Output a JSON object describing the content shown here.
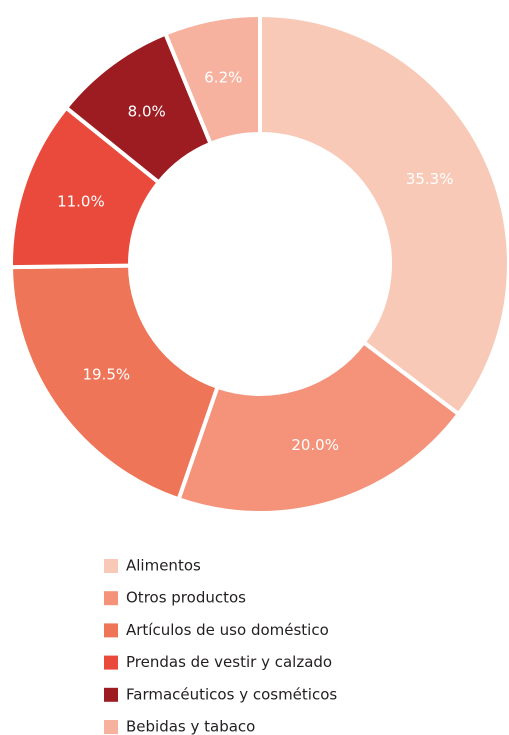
{
  "chart_data": {
    "type": "pie",
    "categories": [
      "Alimentos",
      "Otros productos",
      "Artículos de uso doméstico",
      "Prendas de vestir y calzado",
      "Farmacéuticos y cosméticos",
      "Bebidas y tabaco"
    ],
    "values": [
      35.3,
      20.0,
      19.5,
      11.0,
      8.0,
      6.2
    ],
    "value_labels": [
      "35.3%",
      "20.0%",
      "19.5%",
      "11.0%",
      "8.0%",
      "6.2%"
    ],
    "colors": [
      "#f9c9b8",
      "#f4937a",
      "#ef7558",
      "#ea4a3c",
      "#9c1c21",
      "#f6b29e"
    ]
  }
}
